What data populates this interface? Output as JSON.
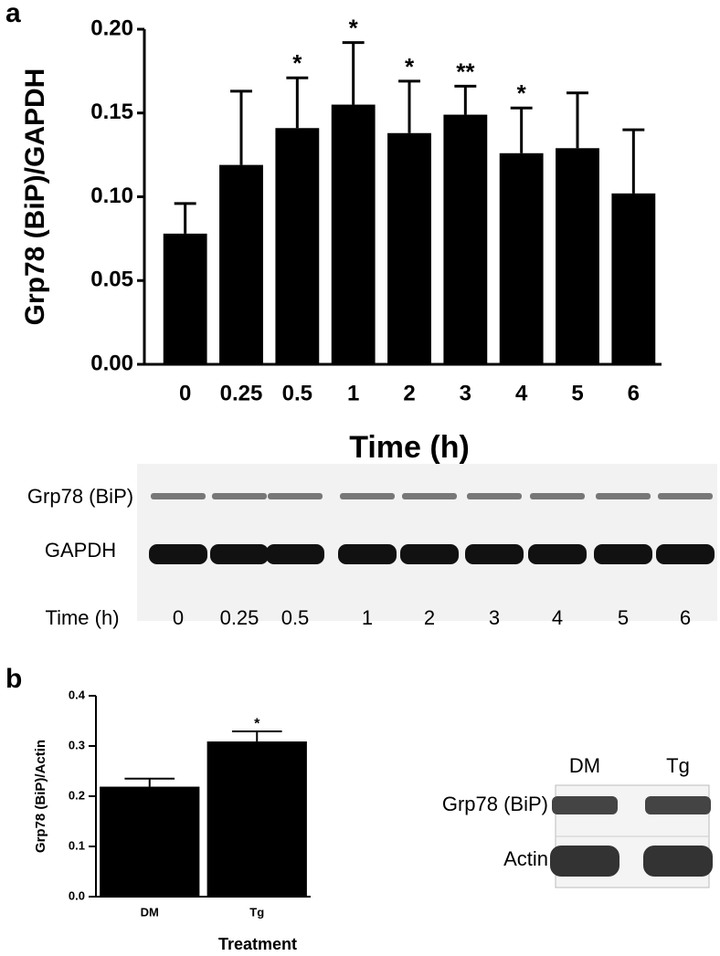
{
  "chart_data": [
    {
      "type": "bar",
      "panel_label": "a",
      "ylabel": "Grp78 (BiP)/GAPDH",
      "xlabel": "Time (h)",
      "categories": [
        "0",
        "0.25",
        "0.5",
        "1",
        "2",
        "3",
        "4",
        "5",
        "6"
      ],
      "values": [
        0.078,
        0.119,
        0.141,
        0.155,
        0.138,
        0.149,
        0.126,
        0.129,
        0.102
      ],
      "errors": [
        0.018,
        0.044,
        0.03,
        0.037,
        0.031,
        0.017,
        0.027,
        0.033,
        0.038
      ],
      "significance": [
        null,
        null,
        "*",
        "*",
        "*",
        "**",
        "*",
        null,
        null
      ],
      "color": "#000000",
      "ylim": [
        0,
        0.2
      ],
      "yticks": [
        {
          "value": 0,
          "label": "0.00"
        },
        0.05,
        {
          "value": 0.1,
          "label": "0.10"
        },
        0.15,
        {
          "value": 0.2,
          "label": "0.20"
        }
      ]
    },
    {
      "type": "bar",
      "panel_label": "b",
      "ylabel": "Grp78 (BiP)/Actin",
      "xlabel": "Treatment",
      "categories": [
        "DM",
        "Tg"
      ],
      "values": [
        0.219,
        0.309
      ],
      "errors": [
        0.016,
        0.02
      ],
      "significance": [
        null,
        "*"
      ],
      "color": "#000000",
      "ylim": [
        0,
        0.4
      ],
      "yticks": [
        {
          "value": 0,
          "label": "0.0"
        },
        0.1,
        0.2,
        0.3,
        0.4
      ]
    }
  ],
  "blots": [
    {
      "rows": [
        "Grp78 (BiP)",
        "GAPDH"
      ],
      "lane_axis": "Time (h)",
      "lanes": [
        "0",
        "0.25",
        "0.5",
        "1",
        "2",
        "3",
        "4",
        "5",
        "6"
      ]
    },
    {
      "rows": [
        "Grp78 (BiP)",
        "Actin"
      ],
      "lanes": [
        "DM",
        "Tg"
      ]
    }
  ]
}
